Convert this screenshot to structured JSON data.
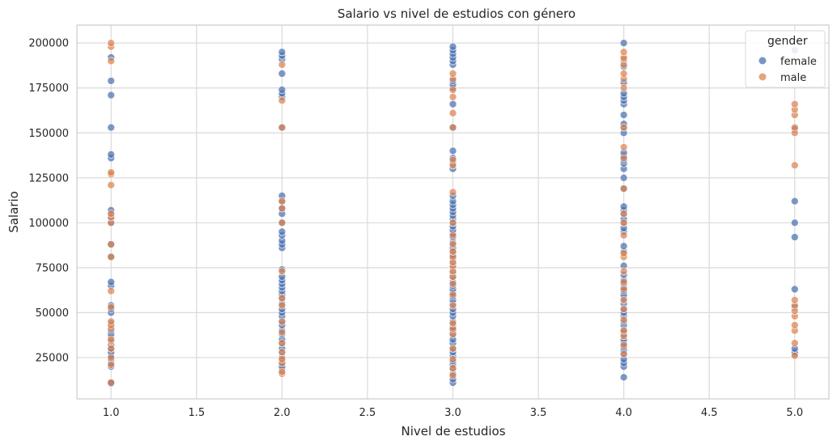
{
  "chart_data": {
    "type": "scatter",
    "title": "Salario vs nivel de estudios con género",
    "xlabel": "Nivel de estudios",
    "ylabel": "Salario",
    "xlim": [
      0.8,
      5.2
    ],
    "ylim": [
      2000,
      210000
    ],
    "xticks": [
      "1.0",
      "1.5",
      "2.0",
      "2.5",
      "3.0",
      "3.5",
      "4.0",
      "4.5",
      "5.0"
    ],
    "yticks": [
      "25000",
      "50000",
      "75000",
      "100000",
      "125000",
      "150000",
      "175000",
      "200000"
    ],
    "grid": true,
    "legend": {
      "title": "gender",
      "position": "top-right"
    },
    "series": [
      {
        "name": "female",
        "color": "#4c72b0",
        "points": [
          [
            1,
            10500
          ],
          [
            1,
            11000
          ],
          [
            1,
            20000
          ],
          [
            1,
            22000
          ],
          [
            1,
            24000
          ],
          [
            1,
            26000
          ],
          [
            1,
            28000
          ],
          [
            1,
            30000
          ],
          [
            1,
            32000
          ],
          [
            1,
            36000
          ],
          [
            1,
            38000
          ],
          [
            1,
            40000
          ],
          [
            1,
            42000
          ],
          [
            1,
            44000
          ],
          [
            1,
            50000
          ],
          [
            1,
            52000
          ],
          [
            1,
            54000
          ],
          [
            1,
            65000
          ],
          [
            1,
            67000
          ],
          [
            1,
            81000
          ],
          [
            1,
            88000
          ],
          [
            1,
            100000
          ],
          [
            1,
            103000
          ],
          [
            1,
            105000
          ],
          [
            1,
            107000
          ],
          [
            1,
            136000
          ],
          [
            1,
            138000
          ],
          [
            1,
            153000
          ],
          [
            1,
            171000
          ],
          [
            1,
            179000
          ],
          [
            1,
            192000
          ],
          [
            2,
            18000
          ],
          [
            2,
            20000
          ],
          [
            2,
            22000
          ],
          [
            2,
            25000
          ],
          [
            2,
            28000
          ],
          [
            2,
            30000
          ],
          [
            2,
            33000
          ],
          [
            2,
            35000
          ],
          [
            2,
            38000
          ],
          [
            2,
            40000
          ],
          [
            2,
            43000
          ],
          [
            2,
            45000
          ],
          [
            2,
            48000
          ],
          [
            2,
            50000
          ],
          [
            2,
            52000
          ],
          [
            2,
            55000
          ],
          [
            2,
            58000
          ],
          [
            2,
            60000
          ],
          [
            2,
            62000
          ],
          [
            2,
            64000
          ],
          [
            2,
            66000
          ],
          [
            2,
            68000
          ],
          [
            2,
            70000
          ],
          [
            2,
            74000
          ],
          [
            2,
            86000
          ],
          [
            2,
            88000
          ],
          [
            2,
            90000
          ],
          [
            2,
            93000
          ],
          [
            2,
            95000
          ],
          [
            2,
            100000
          ],
          [
            2,
            105000
          ],
          [
            2,
            108000
          ],
          [
            2,
            112000
          ],
          [
            2,
            115000
          ],
          [
            2,
            153000
          ],
          [
            2,
            170000
          ],
          [
            2,
            172000
          ],
          [
            2,
            174000
          ],
          [
            2,
            183000
          ],
          [
            2,
            191000
          ],
          [
            2,
            193000
          ],
          [
            2,
            195000
          ],
          [
            3,
            11000
          ],
          [
            3,
            13000
          ],
          [
            3,
            16000
          ],
          [
            3,
            19000
          ],
          [
            3,
            21000
          ],
          [
            3,
            23000
          ],
          [
            3,
            26000
          ],
          [
            3,
            28000
          ],
          [
            3,
            30000
          ],
          [
            3,
            33000
          ],
          [
            3,
            35000
          ],
          [
            3,
            38000
          ],
          [
            3,
            40000
          ],
          [
            3,
            42000
          ],
          [
            3,
            45000
          ],
          [
            3,
            48000
          ],
          [
            3,
            50000
          ],
          [
            3,
            52000
          ],
          [
            3,
            55000
          ],
          [
            3,
            57000
          ],
          [
            3,
            59000
          ],
          [
            3,
            61000
          ],
          [
            3,
            63000
          ],
          [
            3,
            65000
          ],
          [
            3,
            67000
          ],
          [
            3,
            70000
          ],
          [
            3,
            72000
          ],
          [
            3,
            75000
          ],
          [
            3,
            78000
          ],
          [
            3,
            80000
          ],
          [
            3,
            82000
          ],
          [
            3,
            84000
          ],
          [
            3,
            86000
          ],
          [
            3,
            89000
          ],
          [
            3,
            92000
          ],
          [
            3,
            94000
          ],
          [
            3,
            96000
          ],
          [
            3,
            98000
          ],
          [
            3,
            100000
          ],
          [
            3,
            102000
          ],
          [
            3,
            104000
          ],
          [
            3,
            106000
          ],
          [
            3,
            108000
          ],
          [
            3,
            110000
          ],
          [
            3,
            112000
          ],
          [
            3,
            115000
          ],
          [
            3,
            130000
          ],
          [
            3,
            133000
          ],
          [
            3,
            136000
          ],
          [
            3,
            140000
          ],
          [
            3,
            153000
          ],
          [
            3,
            166000
          ],
          [
            3,
            175000
          ],
          [
            3,
            177000
          ],
          [
            3,
            179000
          ],
          [
            3,
            188000
          ],
          [
            3,
            190000
          ],
          [
            3,
            192000
          ],
          [
            3,
            194000
          ],
          [
            3,
            196000
          ],
          [
            3,
            198000
          ],
          [
            4,
            14000
          ],
          [
            4,
            20000
          ],
          [
            4,
            22000
          ],
          [
            4,
            24000
          ],
          [
            4,
            27000
          ],
          [
            4,
            29000
          ],
          [
            4,
            31000
          ],
          [
            4,
            33000
          ],
          [
            4,
            35000
          ],
          [
            4,
            38000
          ],
          [
            4,
            40000
          ],
          [
            4,
            43000
          ],
          [
            4,
            45000
          ],
          [
            4,
            48000
          ],
          [
            4,
            50000
          ],
          [
            4,
            52000
          ],
          [
            4,
            55000
          ],
          [
            4,
            58000
          ],
          [
            4,
            60000
          ],
          [
            4,
            62000
          ],
          [
            4,
            64000
          ],
          [
            4,
            66000
          ],
          [
            4,
            68000
          ],
          [
            4,
            71000
          ],
          [
            4,
            76000
          ],
          [
            4,
            84000
          ],
          [
            4,
            87000
          ],
          [
            4,
            95000
          ],
          [
            4,
            97000
          ],
          [
            4,
            100000
          ],
          [
            4,
            102000
          ],
          [
            4,
            105000
          ],
          [
            4,
            107000
          ],
          [
            4,
            109000
          ],
          [
            4,
            119000
          ],
          [
            4,
            125000
          ],
          [
            4,
            130000
          ],
          [
            4,
            133000
          ],
          [
            4,
            135000
          ],
          [
            4,
            137000
          ],
          [
            4,
            139000
          ],
          [
            4,
            150000
          ],
          [
            4,
            153000
          ],
          [
            4,
            155000
          ],
          [
            4,
            160000
          ],
          [
            4,
            166000
          ],
          [
            4,
            168000
          ],
          [
            4,
            170000
          ],
          [
            4,
            172000
          ],
          [
            4,
            178000
          ],
          [
            4,
            187000
          ],
          [
            4,
            190000
          ],
          [
            4,
            200000
          ],
          [
            5,
            27000
          ],
          [
            5,
            28000
          ],
          [
            5,
            30000
          ],
          [
            5,
            53000
          ],
          [
            5,
            63000
          ],
          [
            5,
            92000
          ],
          [
            5,
            100000
          ],
          [
            5,
            112000
          ],
          [
            5,
            152000
          ],
          [
            5,
            196000
          ]
        ]
      },
      {
        "name": "male",
        "color": "#dd8452",
        "points": [
          [
            1,
            11000
          ],
          [
            1,
            21000
          ],
          [
            1,
            25000
          ],
          [
            1,
            30000
          ],
          [
            1,
            34000
          ],
          [
            1,
            35000
          ],
          [
            1,
            41000
          ],
          [
            1,
            43000
          ],
          [
            1,
            45000
          ],
          [
            1,
            53000
          ],
          [
            1,
            62000
          ],
          [
            1,
            81000
          ],
          [
            1,
            88000
          ],
          [
            1,
            100000
          ],
          [
            1,
            103000
          ],
          [
            1,
            105000
          ],
          [
            1,
            121000
          ],
          [
            1,
            127000
          ],
          [
            1,
            128000
          ],
          [
            1,
            190000
          ],
          [
            1,
            198000
          ],
          [
            1,
            200000
          ],
          [
            2,
            16000
          ],
          [
            2,
            17000
          ],
          [
            2,
            22000
          ],
          [
            2,
            24000
          ],
          [
            2,
            28000
          ],
          [
            2,
            33000
          ],
          [
            2,
            39000
          ],
          [
            2,
            45000
          ],
          [
            2,
            54000
          ],
          [
            2,
            58000
          ],
          [
            2,
            73000
          ],
          [
            2,
            100000
          ],
          [
            2,
            108000
          ],
          [
            2,
            112000
          ],
          [
            2,
            153000
          ],
          [
            2,
            168000
          ],
          [
            2,
            188000
          ],
          [
            3,
            15000
          ],
          [
            3,
            19000
          ],
          [
            3,
            24000
          ],
          [
            3,
            30000
          ],
          [
            3,
            38000
          ],
          [
            3,
            41000
          ],
          [
            3,
            44000
          ],
          [
            3,
            54000
          ],
          [
            3,
            60000
          ],
          [
            3,
            66000
          ],
          [
            3,
            70000
          ],
          [
            3,
            73000
          ],
          [
            3,
            76000
          ],
          [
            3,
            78000
          ],
          [
            3,
            81000
          ],
          [
            3,
            84000
          ],
          [
            3,
            88000
          ],
          [
            3,
            93000
          ],
          [
            3,
            100000
          ],
          [
            3,
            117000
          ],
          [
            3,
            132000
          ],
          [
            3,
            135000
          ],
          [
            3,
            153000
          ],
          [
            3,
            161000
          ],
          [
            3,
            170000
          ],
          [
            3,
            174000
          ],
          [
            3,
            180000
          ],
          [
            3,
            183000
          ],
          [
            4,
            27000
          ],
          [
            4,
            32000
          ],
          [
            4,
            37000
          ],
          [
            4,
            40000
          ],
          [
            4,
            46000
          ],
          [
            4,
            52000
          ],
          [
            4,
            57000
          ],
          [
            4,
            63000
          ],
          [
            4,
            67000
          ],
          [
            4,
            73000
          ],
          [
            4,
            81000
          ],
          [
            4,
            83000
          ],
          [
            4,
            93000
          ],
          [
            4,
            100000
          ],
          [
            4,
            105000
          ],
          [
            4,
            119000
          ],
          [
            4,
            136000
          ],
          [
            4,
            142000
          ],
          [
            4,
            153000
          ],
          [
            4,
            175000
          ],
          [
            4,
            180000
          ],
          [
            4,
            183000
          ],
          [
            4,
            188000
          ],
          [
            4,
            191000
          ],
          [
            4,
            192000
          ],
          [
            4,
            195000
          ],
          [
            5,
            26000
          ],
          [
            5,
            33000
          ],
          [
            5,
            40000
          ],
          [
            5,
            43000
          ],
          [
            5,
            48000
          ],
          [
            5,
            51000
          ],
          [
            5,
            54000
          ],
          [
            5,
            57000
          ],
          [
            5,
            132000
          ],
          [
            5,
            150000
          ],
          [
            5,
            153000
          ],
          [
            5,
            160000
          ],
          [
            5,
            163000
          ],
          [
            5,
            166000
          ]
        ]
      }
    ]
  }
}
